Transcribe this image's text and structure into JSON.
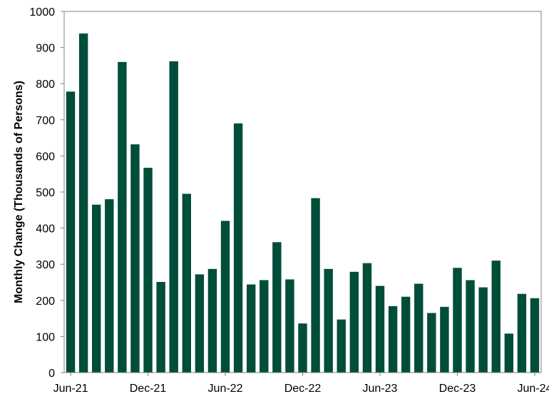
{
  "colors": {
    "bar": "#004d3a",
    "axis": "#808080",
    "text": "#000000",
    "background": "#ffffff"
  },
  "chart_data": {
    "type": "bar",
    "title": "",
    "xlabel": "",
    "ylabel": "Monthly Change (Thousands of Persons)",
    "ylim": [
      0,
      1000
    ],
    "yticks": [
      0,
      100,
      200,
      300,
      400,
      500,
      600,
      700,
      800,
      900,
      1000
    ],
    "xtick_labels": [
      "Jun-21",
      "Dec-21",
      "Jun-22",
      "Dec-22",
      "Jun-23",
      "Dec-23",
      "Jun-24"
    ],
    "grid": false,
    "legend": "none",
    "categories": [
      "Jun-21",
      "Jul-21",
      "Aug-21",
      "Sep-21",
      "Oct-21",
      "Nov-21",
      "Dec-21",
      "Jan-22",
      "Feb-22",
      "Mar-22",
      "Apr-22",
      "May-22",
      "Jun-22",
      "Jul-22",
      "Aug-22",
      "Sep-22",
      "Oct-22",
      "Nov-22",
      "Dec-22",
      "Jan-23",
      "Feb-23",
      "Mar-23",
      "Apr-23",
      "May-23",
      "Jun-23",
      "Jul-23",
      "Aug-23",
      "Sep-23",
      "Oct-23",
      "Nov-23",
      "Dec-23",
      "Jan-24",
      "Feb-24",
      "Mar-24",
      "Apr-24",
      "May-24",
      "Jun-24"
    ],
    "values": [
      778,
      939,
      465,
      480,
      860,
      632,
      567,
      251,
      862,
      495,
      272,
      287,
      420,
      690,
      244,
      256,
      361,
      258,
      136,
      483,
      287,
      147,
      279,
      303,
      240,
      184,
      210,
      246,
      165,
      182,
      290,
      256,
      236,
      310,
      108,
      218,
      206
    ]
  }
}
